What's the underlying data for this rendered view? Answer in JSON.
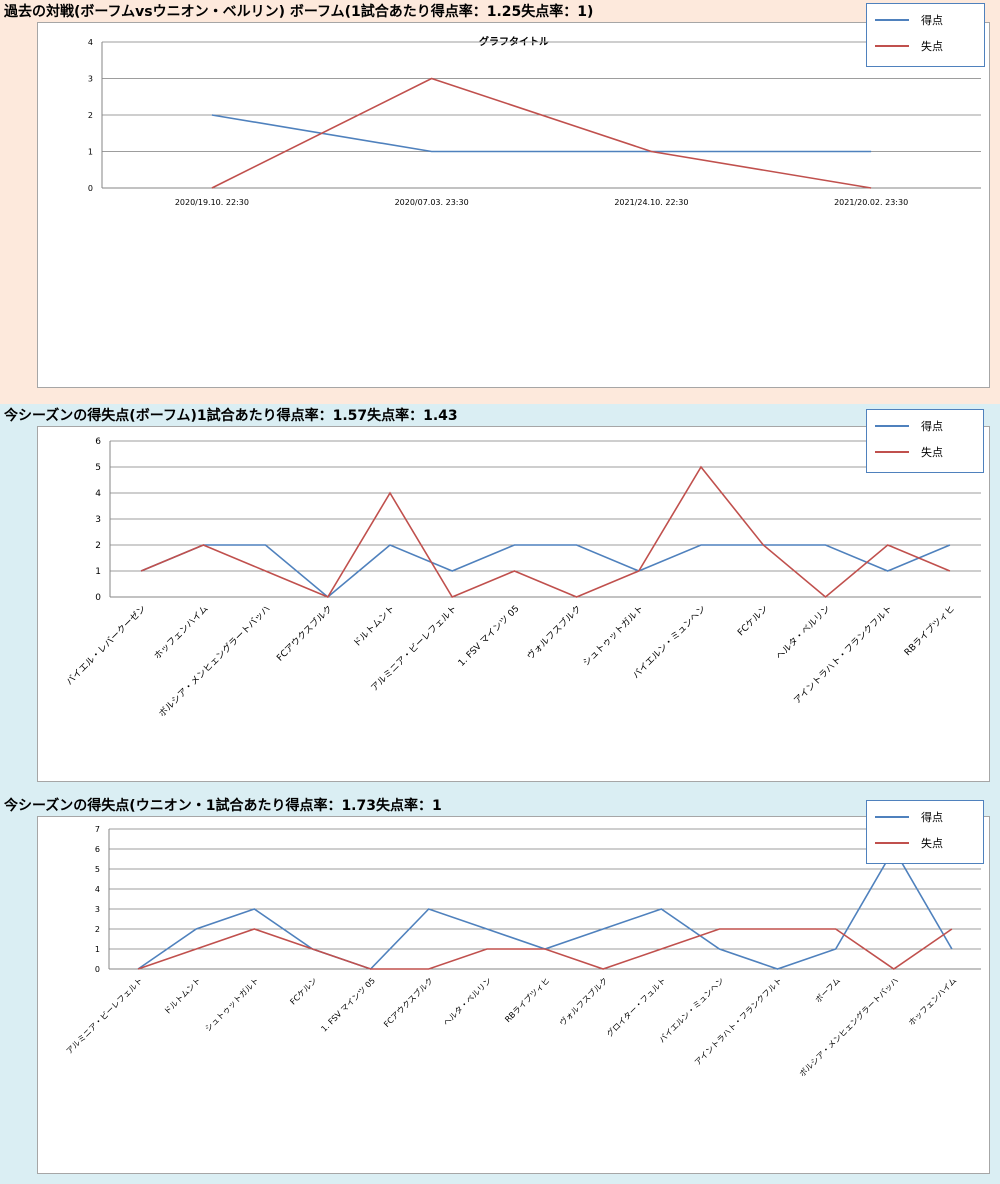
{
  "charts": [
    {
      "id": "past-matches",
      "panel_title": "過去の対戦(ボーフムvsウニオン・ベルリン) ボーフム(1試合あたり得点率：1.25失点率：1)",
      "chart_title": "グラフタイトル",
      "legend": {
        "goals": "得点",
        "conceded": "失点"
      }
    },
    {
      "id": "bochum-season",
      "panel_title": "今シーズンの得失点(ボーフム)1試合あたり得点率：1.57失点率：1.43",
      "chart_title": "",
      "legend": {
        "goals": "得点",
        "conceded": "失点"
      }
    },
    {
      "id": "union-season",
      "panel_title": "今シーズンの得失点(ウニオン・1試合あたり得点率：1.73失点率：1",
      "chart_title": "",
      "legend": {
        "goals": "得点",
        "conceded": "失点"
      }
    }
  ],
  "colors": {
    "goals": "#4f81bd",
    "conceded": "#c0504d",
    "grid": "#9d9d9d"
  },
  "chart_data": [
    {
      "type": "line",
      "title": "グラフタイトル",
      "categories": [
        "2020/19.10. 22:30",
        "2020/07.03. 23:30",
        "2021/24.10. 22:30",
        "2021/20.02. 23:30"
      ],
      "series": [
        {
          "name": "得点",
          "values": [
            2,
            1,
            1,
            1
          ]
        },
        {
          "name": "失点",
          "values": [
            0,
            3,
            1,
            0
          ]
        }
      ],
      "ylim": [
        0,
        4
      ],
      "yticks": [
        0,
        1,
        2,
        3,
        4
      ],
      "grid": true,
      "legend_position": "top-right"
    },
    {
      "type": "line",
      "title": "",
      "categories": [
        "バイエル・レバークーゼン",
        "ホッフェンハイム",
        "ボルシア・メンヒェングラートバッハ",
        "FCアウクスブルク",
        "ドルトムント",
        "アルミニア・ビーレフェルト",
        "1. FSV マインツ 05",
        "ヴォルフスブルク",
        "シュトゥットガルト",
        "バイエルン・ミュンヘン",
        "FCケルン",
        "ヘルタ・ベルリン",
        "アイントラハト・フランクフルト",
        "RBライプツィヒ"
      ],
      "series": [
        {
          "name": "得点",
          "values": [
            1,
            2,
            2,
            0,
            2,
            1,
            2,
            2,
            1,
            2,
            2,
            2,
            1,
            2
          ]
        },
        {
          "name": "失点",
          "values": [
            1,
            2,
            1,
            0,
            4,
            0,
            1,
            0,
            1,
            5,
            2,
            0,
            2,
            1
          ]
        }
      ],
      "ylim": [
        0,
        6
      ],
      "yticks": [
        0,
        1,
        2,
        3,
        4,
        5,
        6
      ],
      "grid": true,
      "legend_position": "top-right"
    },
    {
      "type": "line",
      "title": "",
      "categories": [
        "アルミニア・ビーレフェルト",
        "ドルトムント",
        "シュトゥットガルト",
        "FCケルン",
        "1. FSV マインツ 05",
        "FCアウクスブルク",
        "ヘルタ・ベルリン",
        "RBライプツィヒ",
        "ヴォルフスブルク",
        "グロイター・フュルト",
        "バイエルン・ミュンヘン",
        "アイントラハト・フランクフルト",
        "ボーフム",
        "ボルシア・メンヒェングラートバッハ",
        "ホッフェンハイム"
      ],
      "series": [
        {
          "name": "得点",
          "values": [
            0,
            2,
            3,
            1,
            0,
            3,
            2,
            1,
            2,
            3,
            1,
            0,
            1,
            6,
            1
          ]
        },
        {
          "name": "失点",
          "values": [
            0,
            1,
            2,
            1,
            0,
            0,
            1,
            1,
            0,
            1,
            2,
            2,
            2,
            0,
            2
          ]
        }
      ],
      "ylim": [
        0,
        7
      ],
      "yticks": [
        0,
        1,
        2,
        3,
        4,
        5,
        6,
        7
      ],
      "grid": true,
      "legend_position": "top-right"
    }
  ]
}
